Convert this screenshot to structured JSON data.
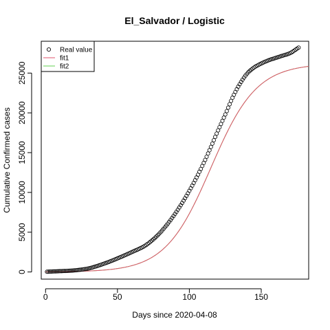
{
  "chart_data": {
    "type": "scatter",
    "title": "El_Salvador / Logistic",
    "xlabel": "Days since 2020-04-08",
    "ylabel": "Cumulative Confirmed cases",
    "xlim": [
      -3,
      183
    ],
    "ylim": [
      -900,
      29000
    ],
    "xticks": [
      0,
      50,
      100,
      150
    ],
    "yticks": [
      0,
      5000,
      10000,
      15000,
      20000,
      25000
    ],
    "grid": false,
    "legend_position": "top-left",
    "legend": [
      {
        "label": "Real value",
        "symbol": "circle",
        "color": "#000000"
      },
      {
        "label": "fit1",
        "symbol": "line",
        "color": "#DF536B"
      },
      {
        "label": "fit2",
        "symbol": "line",
        "color": "#61D04F"
      }
    ],
    "x_range": [
      1,
      176
    ],
    "real_value_anchors": {
      "x": [
        1,
        10,
        20,
        30,
        40,
        50,
        60,
        70,
        80,
        90,
        100,
        110,
        120,
        125,
        130,
        135,
        140,
        145,
        150,
        155,
        160,
        165,
        170,
        176
      ],
      "y": [
        30,
        100,
        200,
        450,
        1000,
        1700,
        2500,
        3400,
        5000,
        7300,
        10200,
        13700,
        17800,
        19800,
        21900,
        23600,
        24900,
        25700,
        26200,
        26600,
        26900,
        27200,
        27500,
        28200
      ]
    },
    "fit1": {
      "model": "logistic",
      "K": 26200,
      "r": 0.063,
      "x0": 115,
      "x_range": [
        0,
        183
      ]
    },
    "fit2": {
      "model": "logistic",
      "K": 26200,
      "r": 0.063,
      "x0": 115,
      "x_range": [
        0,
        183
      ]
    }
  }
}
